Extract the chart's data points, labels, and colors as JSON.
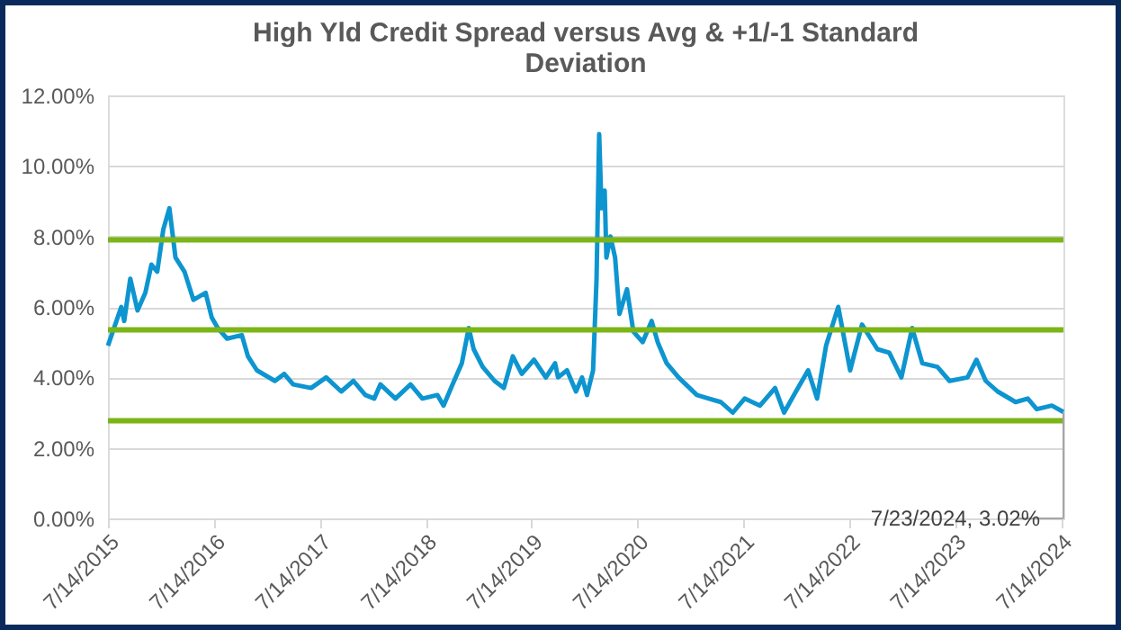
{
  "chart_data": {
    "type": "line",
    "title": "High Yld Credit Spread versus Avg & +1/-1 Standard Deviation",
    "x": [
      "2015-07-14",
      "2015-08-08",
      "2015-08-29",
      "2015-09-08",
      "2015-09-29",
      "2015-10-24",
      "2015-11-20",
      "2015-12-11",
      "2015-12-31",
      "2016-01-21",
      "2016-02-11",
      "2016-03-03",
      "2016-04-03",
      "2016-05-04",
      "2016-06-15",
      "2016-07-06",
      "2016-07-27",
      "2016-08-28",
      "2016-10-18",
      "2016-11-08",
      "2016-12-09",
      "2017-02-09",
      "2017-03-13",
      "2017-04-13",
      "2017-06-14",
      "2017-08-05",
      "2017-09-26",
      "2017-11-07",
      "2017-12-18",
      "2018-01-18",
      "2018-02-08",
      "2018-04-01",
      "2018-05-23",
      "2018-07-03",
      "2018-08-24",
      "2018-09-14",
      "2018-10-15",
      "2018-11-16",
      "2018-12-10",
      "2018-12-27",
      "2019-01-27",
      "2019-03-09",
      "2019-04-10",
      "2019-05-11",
      "2019-06-11",
      "2019-07-23",
      "2019-09-02",
      "2019-10-04",
      "2019-10-14",
      "2019-11-14",
      "2019-12-15",
      "2020-01-05",
      "2020-01-22",
      "2020-02-12",
      "2020-02-24",
      "2020-03-04",
      "2020-03-12",
      "2020-03-23",
      "2020-03-29",
      "2020-04-12",
      "2020-04-28",
      "2020-05-13",
      "2020-06-08",
      "2020-06-30",
      "2020-08-01",
      "2020-09-01",
      "2020-09-22",
      "2020-10-23",
      "2020-12-03",
      "2021-02-04",
      "2021-03-17",
      "2021-04-28",
      "2021-06-08",
      "2021-07-19",
      "2021-09-10",
      "2021-11-01",
      "2021-12-02",
      "2022-01-12",
      "2022-02-23",
      "2022-03-26",
      "2022-04-26",
      "2022-06-07",
      "2022-07-18",
      "2022-08-28",
      "2022-10-20",
      "2022-11-30",
      "2023-01-11",
      "2023-02-17",
      "2023-03-24",
      "2023-05-15",
      "2023-06-26",
      "2023-08-27",
      "2023-09-27",
      "2023-10-29",
      "2023-12-09",
      "2024-02-09",
      "2024-03-22",
      "2024-04-22",
      "2024-06-13",
      "2024-07-23"
    ],
    "series": [
      {
        "color": "#0d95d0",
        "values": [
          4.9,
          5.5,
          6.0,
          5.6,
          6.8,
          5.9,
          6.4,
          7.2,
          7.0,
          8.2,
          8.8,
          7.4,
          7.0,
          6.2,
          6.4,
          5.7,
          5.4,
          5.1,
          5.2,
          4.6,
          4.2,
          3.9,
          4.1,
          3.8,
          3.7,
          4.0,
          3.6,
          3.9,
          3.5,
          3.4,
          3.8,
          3.4,
          3.8,
          3.4,
          3.5,
          3.2,
          3.8,
          4.4,
          5.4,
          4.8,
          4.3,
          3.9,
          3.7,
          4.6,
          4.1,
          4.5,
          4.0,
          4.4,
          4.0,
          4.2,
          3.6,
          4.0,
          3.5,
          4.2,
          6.8,
          10.9,
          8.8,
          9.3,
          7.4,
          8.0,
          7.4,
          5.8,
          6.5,
          5.3,
          5.0,
          5.6,
          5.0,
          4.4,
          4.0,
          3.5,
          3.4,
          3.3,
          3.0,
          3.4,
          3.2,
          3.7,
          3.0,
          3.6,
          4.2,
          3.4,
          4.9,
          6.0,
          4.2,
          5.5,
          4.8,
          4.7,
          4.0,
          5.4,
          4.4,
          4.3,
          3.9,
          4.0,
          4.5,
          3.9,
          3.6,
          3.3,
          3.4,
          3.1,
          3.2,
          3.02
        ]
      }
    ],
    "xlim": [
      "2015-07-14",
      "2024-07-23"
    ],
    "xticks": [
      {
        "value": "2015-07-14",
        "label": "7/14/2015"
      },
      {
        "value": "2016-07-14",
        "label": "7/14/2016"
      },
      {
        "value": "2017-07-14",
        "label": "7/14/2017"
      },
      {
        "value": "2018-07-14",
        "label": "7/14/2018"
      },
      {
        "value": "2019-07-14",
        "label": "7/14/2019"
      },
      {
        "value": "2020-07-14",
        "label": "7/14/2020"
      },
      {
        "value": "2021-07-14",
        "label": "7/14/2021"
      },
      {
        "value": "2022-07-14",
        "label": "7/14/2022"
      },
      {
        "value": "2023-07-14",
        "label": "7/14/2023"
      },
      {
        "value": "2024-07-14",
        "label": "7/14/2024"
      }
    ],
    "ylim": [
      0,
      12
    ],
    "yticks": [
      {
        "value": 0,
        "label": "0.00%"
      },
      {
        "value": 2,
        "label": "2.00%"
      },
      {
        "value": 4,
        "label": "4.00%"
      },
      {
        "value": 6,
        "label": "6.00%"
      },
      {
        "value": 8,
        "label": "8.00%"
      },
      {
        "value": 10,
        "label": "10.00%"
      },
      {
        "value": 12,
        "label": "12.00%"
      }
    ],
    "ref_lines": [
      {
        "axis": "y",
        "value": 7.9,
        "color": "#7cb518"
      },
      {
        "axis": "y",
        "value": 5.35,
        "color": "#7cb518"
      },
      {
        "axis": "y",
        "value": 2.77,
        "color": "#7cb518"
      }
    ],
    "annotations": [
      {
        "text": "7/23/2024, 3.02%",
        "x": "2024-07-23",
        "y": 3.02
      }
    ],
    "grid": "y",
    "marker": "none",
    "line_style": "solid"
  }
}
